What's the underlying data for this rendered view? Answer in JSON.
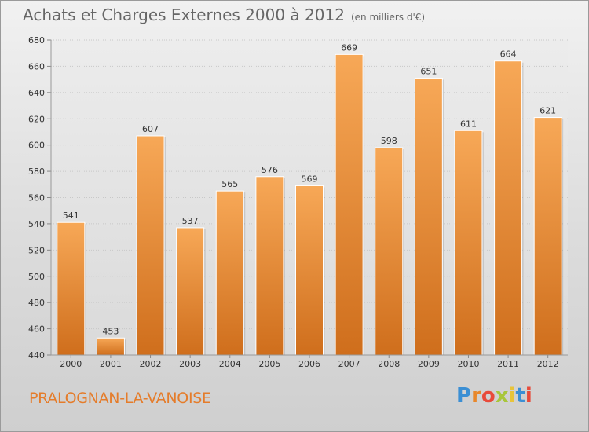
{
  "header": {
    "title": "Achats et Charges Externes 2000 à 2012",
    "unit": "(en milliers d'€)"
  },
  "footer": {
    "commune": "PRALOGNAN-LA-VANOISE",
    "logo_letters": [
      "P",
      "r",
      "o",
      "x",
      "i",
      "t",
      "i"
    ],
    "logo_colors": [
      "#3b8fd4",
      "#e8872a",
      "#e84a3a",
      "#a8c63a",
      "#e8c43a",
      "#3b8fd4",
      "#e84a3a"
    ]
  },
  "chart_data": {
    "type": "bar",
    "categories": [
      "2000",
      "2001",
      "2002",
      "2003",
      "2004",
      "2005",
      "2006",
      "2007",
      "2008",
      "2009",
      "2010",
      "2011",
      "2012"
    ],
    "values": [
      541,
      453,
      607,
      537,
      565,
      576,
      569,
      669,
      598,
      651,
      611,
      664,
      621
    ],
    "ylim": [
      440,
      680
    ],
    "yticks": [
      440,
      460,
      480,
      500,
      520,
      540,
      560,
      580,
      600,
      620,
      640,
      660,
      680
    ],
    "grid": true,
    "bar_color_top": "#f7a857",
    "bar_color_bottom": "#cf6e1c"
  }
}
